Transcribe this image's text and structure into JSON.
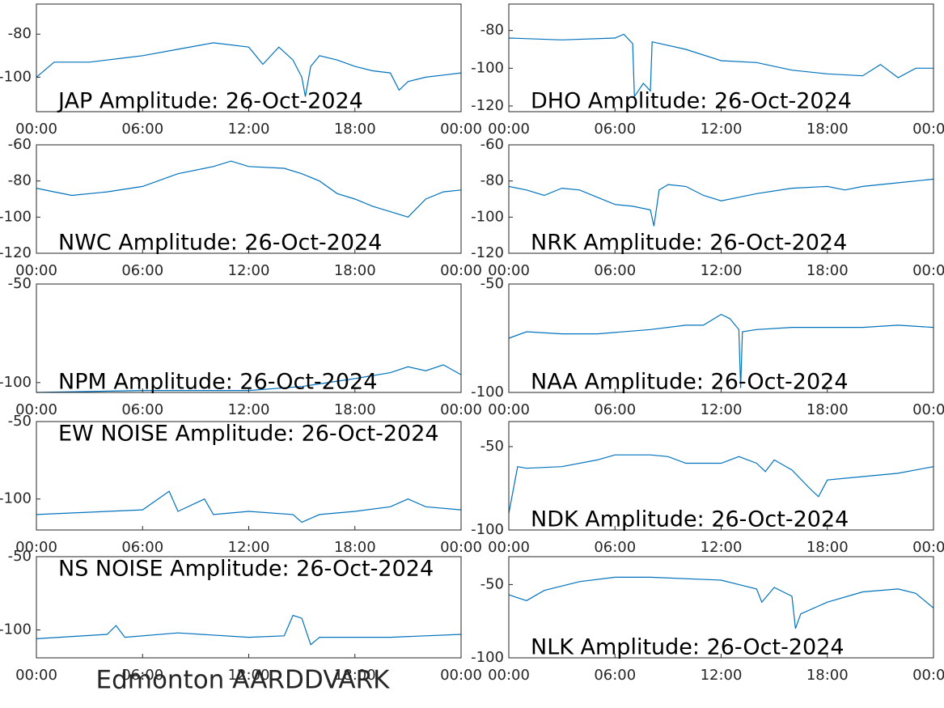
{
  "chart_data": [
    {
      "type": "line",
      "title": "JAP Amplitude: 26-Oct-2024",
      "title_loc": "lower left",
      "color": "#0072bd",
      "x": [
        0,
        1,
        3,
        5,
        6,
        8,
        10,
        12,
        12.8,
        13.7,
        14.5,
        15.0,
        15.2,
        15.5,
        16,
        17,
        18,
        19,
        20,
        20.5,
        21,
        22,
        23,
        24
      ],
      "values": [
        -100,
        -93,
        -93,
        -91,
        -90,
        -87,
        -84,
        -86,
        -94,
        -86,
        -92,
        -100,
        -109,
        -95,
        -90,
        -92,
        -95,
        -97,
        -98,
        -106,
        -102,
        -100,
        -99,
        -98
      ],
      "xlim": [
        0,
        24
      ],
      "ylim": [
        -116,
        -66
      ],
      "yticks": [
        -80,
        -100
      ],
      "xticks": [
        {
          "value": 0,
          "label": "00:00"
        },
        {
          "value": 6,
          "label": "06:00"
        },
        {
          "value": 12,
          "label": "12:00"
        },
        {
          "value": 18,
          "label": "18:00"
        },
        {
          "value": 24,
          "label": "00:00"
        }
      ]
    },
    {
      "type": "line",
      "title": "DHO Amplitude: 26-Oct-2024",
      "title_loc": "lower left",
      "color": "#0072bd",
      "x": [
        0,
        3,
        6,
        6.5,
        7,
        7.1,
        7.6,
        8.0,
        8.1,
        10,
        12,
        14,
        16,
        18,
        20,
        21,
        22,
        23,
        24
      ],
      "values": [
        -84,
        -85,
        -84,
        -82,
        -87,
        -115,
        -108,
        -112,
        -86,
        -90,
        -96,
        -97,
        -101,
        -103,
        -104,
        -98,
        -105,
        -100,
        -100
      ],
      "xlim": [
        0,
        24
      ],
      "ylim": [
        -123,
        -66
      ],
      "yticks": [
        -80,
        -100,
        -120
      ],
      "xticks": [
        {
          "value": 0,
          "label": "00:00"
        },
        {
          "value": 6,
          "label": "06:00"
        },
        {
          "value": 12,
          "label": "12:00"
        },
        {
          "value": 18,
          "label": "18:00"
        },
        {
          "value": 24,
          "label": "00:00"
        }
      ]
    },
    {
      "type": "line",
      "title": "NWC Amplitude: 26-Oct-2024",
      "title_loc": "lower left",
      "color": "#0072bd",
      "x": [
        0,
        1,
        2,
        4,
        6,
        8,
        10,
        11,
        12,
        14,
        15,
        16,
        17,
        18,
        19,
        20,
        21,
        22,
        23,
        24
      ],
      "values": [
        -84,
        -86,
        -88,
        -86,
        -83,
        -76,
        -72,
        -69,
        -72,
        -73,
        -76,
        -80,
        -87,
        -90,
        -94,
        -97,
        -100,
        -90,
        -86,
        -85
      ],
      "xlim": [
        0,
        24
      ],
      "ylim": [
        -120,
        -60
      ],
      "yticks": [
        -60,
        -80,
        -100,
        -120
      ],
      "xticks": [
        {
          "value": 0,
          "label": "00:00"
        },
        {
          "value": 6,
          "label": "06:00"
        },
        {
          "value": 12,
          "label": "12:00"
        },
        {
          "value": 18,
          "label": "18:00"
        },
        {
          "value": 24,
          "label": "00:00"
        }
      ]
    },
    {
      "type": "line",
      "title": "NRK Amplitude: 26-Oct-2024",
      "title_loc": "lower left",
      "color": "#0072bd",
      "x": [
        0,
        1,
        2,
        3,
        4,
        5,
        6,
        7,
        8,
        8.2,
        8.5,
        9,
        10,
        11,
        12,
        13,
        14,
        16,
        18,
        19,
        20,
        22,
        24
      ],
      "values": [
        -83,
        -85,
        -88,
        -84,
        -85,
        -89,
        -93,
        -94,
        -96,
        -105,
        -85,
        -82,
        -83,
        -88,
        -91,
        -89,
        -87,
        -84,
        -83,
        -85,
        -83,
        -81,
        -79
      ],
      "xlim": [
        0,
        24
      ],
      "ylim": [
        -120,
        -60
      ],
      "yticks": [
        -60,
        -80,
        -100,
        -120
      ],
      "xticks": [
        {
          "value": 0,
          "label": "00:00"
        },
        {
          "value": 6,
          "label": "06:00"
        },
        {
          "value": 12,
          "label": "12:00"
        },
        {
          "value": 18,
          "label": "18:00"
        },
        {
          "value": 24,
          "label": "00:00"
        }
      ]
    },
    {
      "type": "line",
      "title": "NPM Amplitude: 26-Oct-2024",
      "title_loc": "lower left",
      "color": "#0072bd",
      "x": [
        0,
        6,
        12,
        15,
        18,
        20,
        21,
        22,
        23,
        24
      ],
      "values": [
        -105,
        -104,
        -104,
        -102,
        -98,
        -95,
        -92,
        -94,
        -91,
        -96
      ],
      "xlim": [
        0,
        24
      ],
      "ylim": [
        -105,
        -50
      ],
      "yticks": [
        -50,
        -100
      ],
      "xticks": [
        {
          "value": 0,
          "label": "00:00"
        },
        {
          "value": 6,
          "label": "06:00"
        },
        {
          "value": 12,
          "label": "12:00"
        },
        {
          "value": 18,
          "label": "18:00"
        },
        {
          "value": 24,
          "label": "00:00"
        }
      ]
    },
    {
      "type": "line",
      "title": "NAA Amplitude: 26-Oct-2024",
      "title_loc": "lower left",
      "color": "#0072bd",
      "x": [
        0,
        1,
        3,
        5,
        8,
        10,
        11,
        12,
        12.5,
        13,
        13.1,
        13.2,
        14,
        16,
        18,
        20,
        22,
        24
      ],
      "values": [
        -75,
        -72,
        -73,
        -73,
        -71,
        -69,
        -69,
        -64,
        -66,
        -71,
        -98,
        -72,
        -71,
        -70,
        -70,
        -70,
        -69,
        -70
      ],
      "xlim": [
        0,
        24
      ],
      "ylim": [
        -100,
        -50
      ],
      "yticks": [
        -50,
        -100
      ],
      "xticks": [
        {
          "value": 0,
          "label": "00:00"
        },
        {
          "value": 6,
          "label": "06:00"
        },
        {
          "value": 12,
          "label": "12:00"
        },
        {
          "value": 18,
          "label": "18:00"
        },
        {
          "value": 24,
          "label": "00:00"
        }
      ]
    },
    {
      "type": "line",
      "title": "EW NOISE Amplitude: 26-Oct-2024",
      "title_loc": "upper left",
      "color": "#0072bd",
      "x": [
        0,
        6,
        7.5,
        8,
        9.5,
        10,
        12,
        14.5,
        15,
        16,
        18,
        20,
        21,
        22,
        24
      ],
      "values": [
        -110,
        -107,
        -95,
        -108,
        -100,
        -110,
        -108,
        -110,
        -115,
        -110,
        -108,
        -105,
        -100,
        -105,
        -107
      ],
      "xlim": [
        0,
        24
      ],
      "ylim": [
        -120,
        -50
      ],
      "yticks": [
        -50,
        -100
      ],
      "xticks": [
        {
          "value": 0,
          "label": "00:00"
        },
        {
          "value": 6,
          "label": "06:00"
        },
        {
          "value": 12,
          "label": "12:00"
        },
        {
          "value": 18,
          "label": "18:00"
        },
        {
          "value": 24,
          "label": "00:00"
        }
      ]
    },
    {
      "type": "line",
      "title": "NDK Amplitude: 26-Oct-2024",
      "title_loc": "lower left",
      "color": "#0072bd",
      "x": [
        0,
        0.5,
        1,
        3,
        5,
        6,
        8,
        9,
        10,
        12,
        13,
        14,
        14.5,
        15,
        16,
        17,
        17.5,
        18,
        20,
        22,
        24
      ],
      "values": [
        -90,
        -62,
        -63,
        -62,
        -58,
        -55,
        -55,
        -56,
        -60,
        -60,
        -56,
        -60,
        -65,
        -58,
        -64,
        -75,
        -80,
        -70,
        -68,
        -66,
        -62
      ],
      "xlim": [
        0,
        24
      ],
      "ylim": [
        -100,
        -35
      ],
      "yticks": [
        -50,
        -100
      ],
      "xticks": [
        {
          "value": 0,
          "label": "00:00"
        },
        {
          "value": 6,
          "label": "06:00"
        },
        {
          "value": 12,
          "label": "12:00"
        },
        {
          "value": 18,
          "label": "18:00"
        },
        {
          "value": 24,
          "label": "00:00"
        }
      ]
    },
    {
      "type": "line",
      "title": "NS NOISE Amplitude: 26-Oct-2024",
      "title_loc": "upper left",
      "color": "#0072bd",
      "x": [
        0,
        4,
        4.5,
        5,
        8,
        12,
        14,
        14.5,
        15,
        15.5,
        16,
        20,
        24
      ],
      "values": [
        -106,
        -103,
        -97,
        -105,
        -102,
        -105,
        -104,
        -90,
        -92,
        -110,
        -105,
        -105,
        -103
      ],
      "xlim": [
        0,
        24
      ],
      "ylim": [
        -119,
        -50
      ],
      "yticks": [
        -50,
        -100
      ],
      "xticks": [
        {
          "value": 0,
          "label": "00:00"
        },
        {
          "value": 6,
          "label": "06:00"
        },
        {
          "value": 12,
          "label": "12:00"
        },
        {
          "value": 18,
          "label": "18:00"
        },
        {
          "value": 24,
          "label": "00:00"
        }
      ]
    },
    {
      "type": "line",
      "title": "NLK Amplitude: 26-Oct-2024",
      "title_loc": "lower left",
      "color": "#0072bd",
      "x": [
        0,
        1,
        2,
        4,
        6,
        8,
        12,
        13,
        14,
        14.3,
        15,
        16,
        16.2,
        16.5,
        18,
        20,
        22,
        23,
        24
      ],
      "values": [
        -57,
        -61,
        -54,
        -48,
        -45,
        -45,
        -47,
        -50,
        -53,
        -62,
        -52,
        -58,
        -80,
        -70,
        -62,
        -55,
        -53,
        -56,
        -66
      ],
      "xlim": [
        0,
        24
      ],
      "ylim": [
        -100,
        -31
      ],
      "yticks": [
        -50,
        -100
      ],
      "xticks": [
        {
          "value": 0,
          "label": "00:00"
        },
        {
          "value": 6,
          "label": "06:00"
        },
        {
          "value": 12,
          "label": "12:00"
        },
        {
          "value": 18,
          "label": "18:00"
        },
        {
          "value": 24,
          "label": "00:00"
        }
      ]
    }
  ],
  "caption": {
    "text": "Edmonton AARDDVARK",
    "color": "#ff0000"
  }
}
